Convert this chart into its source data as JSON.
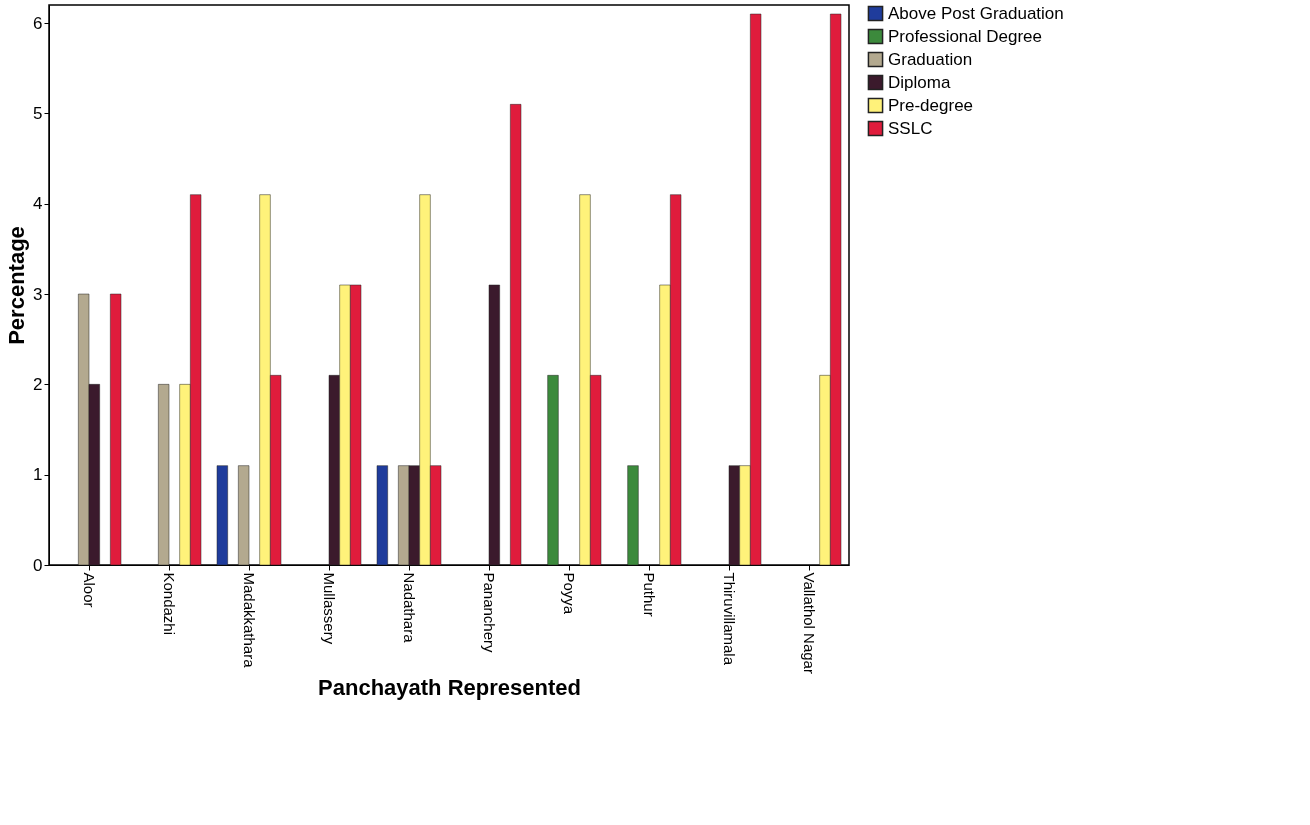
{
  "chart_data": {
    "type": "bar",
    "xlabel": "Panchayath Represented",
    "ylabel": "Percentage",
    "categories": [
      "Aloor",
      "Kondazhi",
      "Madakkathara",
      "Mullassery",
      "Nadathara",
      "Pananchery",
      "Poyya",
      "Puthur",
      "Thiruvillamala",
      "Vallathol Nagar"
    ],
    "series": [
      {
        "name": "Above Post Graduation",
        "color": "#1f3c9c",
        "values": [
          null,
          null,
          1.1,
          null,
          1.1,
          null,
          null,
          null,
          null,
          null
        ]
      },
      {
        "name": "Professional Degree",
        "color": "#3c8a3c",
        "values": [
          null,
          null,
          null,
          null,
          null,
          null,
          2.1,
          1.1,
          null,
          null
        ]
      },
      {
        "name": "Graduation",
        "color": "#b3a98f",
        "values": [
          3.0,
          2.0,
          1.1,
          null,
          1.1,
          null,
          null,
          null,
          null,
          null
        ]
      },
      {
        "name": "Diploma",
        "color": "#3b1a2c",
        "values": [
          2.0,
          null,
          null,
          2.1,
          1.1,
          3.1,
          null,
          null,
          1.1,
          null
        ]
      },
      {
        "name": "Pre-degree",
        "color": "#fff27a",
        "values": [
          null,
          2.0,
          4.1,
          3.1,
          4.1,
          null,
          4.1,
          3.1,
          1.1,
          2.1
        ]
      },
      {
        "name": "SSLC",
        "color": "#e01c3c",
        "values": [
          3.0,
          4.1,
          2.1,
          3.1,
          1.1,
          5.1,
          2.1,
          4.1,
          6.1,
          6.1
        ]
      }
    ],
    "ylim": [
      0,
      6.2
    ],
    "yticks": [
      0,
      1,
      2,
      3,
      4,
      5,
      6
    ],
    "grid": false,
    "legend": "top right"
  }
}
